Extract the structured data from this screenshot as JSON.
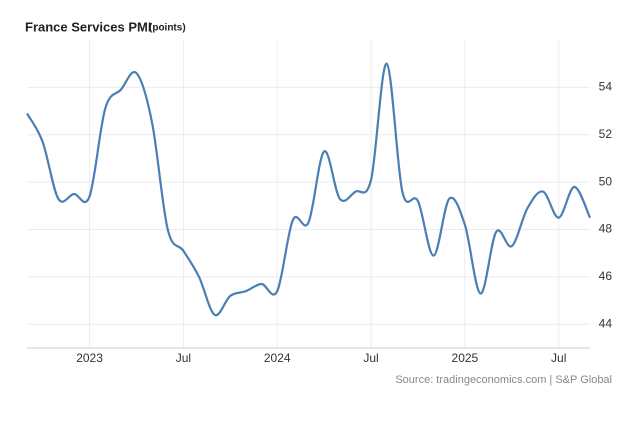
{
  "chart_data": {
    "type": "line",
    "title": "France Services PMI",
    "unit_label": "(points)",
    "source": "Source: tradingeconomics.com | S&P Global",
    "x": [
      "2022-09",
      "2022-10",
      "2022-11",
      "2022-12",
      "2023-01",
      "2023-02",
      "2023-03",
      "2023-04",
      "2023-05",
      "2023-06",
      "2023-07",
      "2023-08",
      "2023-09",
      "2023-10",
      "2023-11",
      "2023-12",
      "2024-01",
      "2024-02",
      "2024-03",
      "2024-04",
      "2024-05",
      "2024-06",
      "2024-07",
      "2024-08",
      "2024-09",
      "2024-10",
      "2024-11",
      "2024-12",
      "2025-01",
      "2025-02",
      "2025-03",
      "2025-04",
      "2025-05",
      "2025-06",
      "2025-07",
      "2025-08",
      "2025-09"
    ],
    "series": [
      {
        "name": "France Services PMI",
        "color": "#4a7fb5",
        "values": [
          52.9,
          51.7,
          49.3,
          49.5,
          49.4,
          53.1,
          53.9,
          54.6,
          52.5,
          48.0,
          47.1,
          46.0,
          44.4,
          45.2,
          45.4,
          45.7,
          45.4,
          48.4,
          48.3,
          51.3,
          49.3,
          49.6,
          50.1,
          55.0,
          49.6,
          49.2,
          46.9,
          49.3,
          48.2,
          45.3,
          47.9,
          47.3,
          48.9,
          49.6,
          48.5,
          49.8,
          48.5
        ]
      }
    ],
    "xlim": [
      "2022-09",
      "2025-09"
    ],
    "xticks": [
      {
        "value": "2023-01",
        "label": "2023"
      },
      {
        "value": "2023-07",
        "label": "Jul"
      },
      {
        "value": "2024-01",
        "label": "2024"
      },
      {
        "value": "2024-07",
        "label": "Jul"
      },
      {
        "value": "2025-01",
        "label": "2025"
      },
      {
        "value": "2025-07",
        "label": "Jul"
      }
    ],
    "ylim": [
      43,
      56
    ],
    "yticks": [
      44,
      46,
      48,
      50,
      52,
      54
    ],
    "grid": true
  }
}
